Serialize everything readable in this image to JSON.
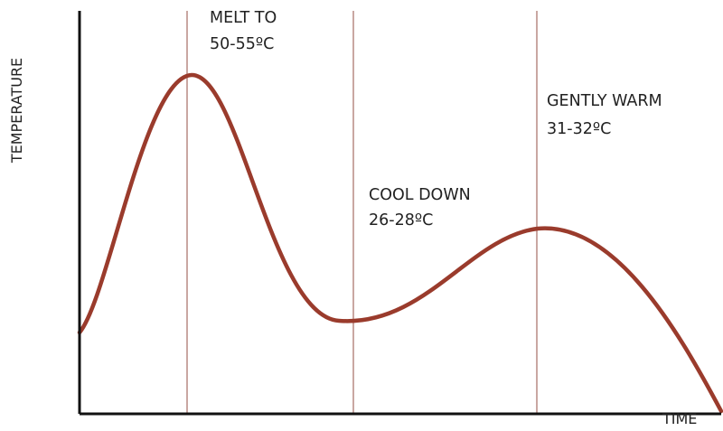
{
  "chart_data": {
    "type": "line",
    "title": "",
    "xlabel": "TIME",
    "ylabel": "TEMPERATURE",
    "show_tick_labels": false,
    "grid": false,
    "legend": "none",
    "colors": {
      "curve": "#9a3b2c",
      "marker_line": "#c9a7a2",
      "axis": "#111111"
    },
    "markers": [
      {
        "label_lines": [
          "MELT TO",
          "50-55ºC"
        ]
      },
      {
        "label_lines": [
          "COOL DOWN",
          "26-28ºC"
        ]
      },
      {
        "label_lines": [
          "GENTLY WARM",
          "31-32ºC"
        ]
      }
    ]
  }
}
